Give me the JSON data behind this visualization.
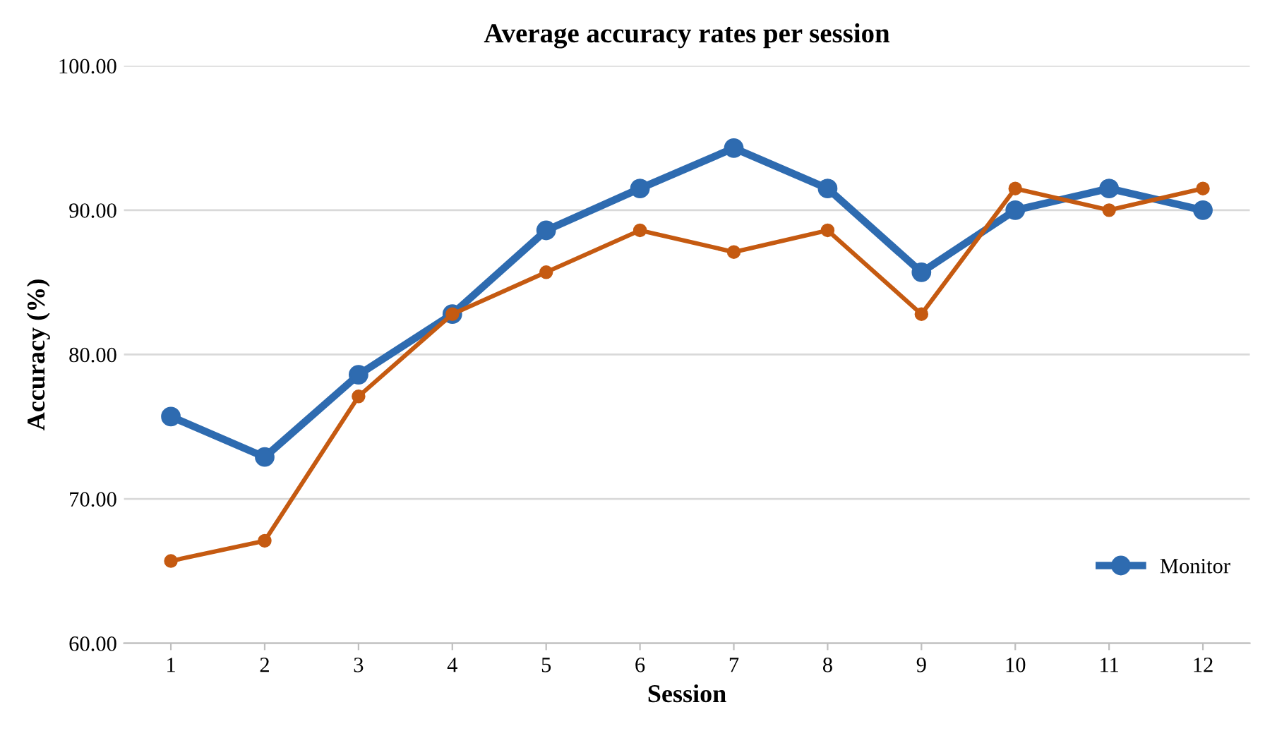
{
  "chart_data": {
    "type": "line",
    "title": "Average accuracy rates per session",
    "xlabel": "Session",
    "ylabel": "Accuracy (%)",
    "categories": [
      "1",
      "2",
      "3",
      "4",
      "5",
      "6",
      "7",
      "8",
      "9",
      "10",
      "11",
      "12"
    ],
    "series": [
      {
        "name": "Monitor",
        "color": "#2e6bb0",
        "values": [
          75.7,
          72.9,
          78.6,
          82.8,
          88.6,
          91.5,
          94.3,
          91.5,
          85.7,
          90.0,
          91.5,
          90.0
        ]
      },
      {
        "color": "#c55a11",
        "values": [
          65.7,
          67.1,
          77.1,
          82.8,
          85.7,
          88.6,
          87.1,
          88.6,
          82.8,
          91.5,
          90.0,
          91.5
        ]
      }
    ],
    "ylim": [
      60,
      100
    ],
    "yticks": [
      {
        "value": 60,
        "label": "60.00"
      },
      {
        "value": 70,
        "label": "70.00"
      },
      {
        "value": 80,
        "label": "80.00"
      },
      {
        "value": 90,
        "label": "90.00"
      },
      {
        "value": 100,
        "label": "100.00"
      }
    ],
    "grid": "y",
    "legend": "bottom right",
    "marker": "circle",
    "line_style": "solid"
  }
}
